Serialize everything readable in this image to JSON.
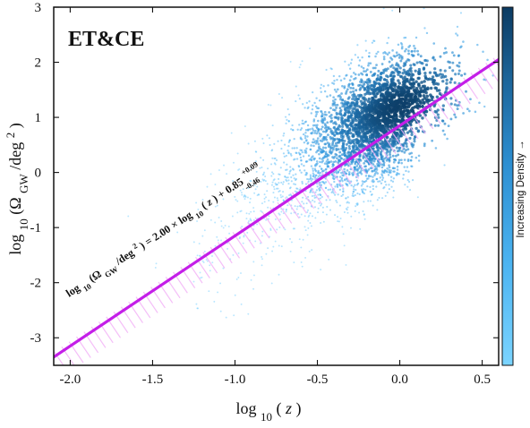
{
  "chart_data": {
    "type": "scatter",
    "title": "ET&CE",
    "x_axis": {
      "label": {
        "base": "log",
        "base_sub": "10",
        "open": "(",
        "var": "z",
        "close": ")"
      },
      "range": [
        -2.1,
        0.6
      ],
      "ticks": [
        -2.0,
        -1.5,
        -1.0,
        -0.5,
        0.0,
        0.5
      ],
      "tick_labels": [
        "-2.0",
        "-1.5",
        "-1.0",
        "-0.5",
        "0.0",
        "0.5"
      ]
    },
    "y_axis": {
      "label": {
        "base": "log",
        "base_sub": "10",
        "open": "(Ω",
        "omega_sub": "GW",
        "slash": "/deg",
        "sup": "2",
        "close": ")"
      },
      "range": [
        -3.5,
        3.0
      ],
      "ticks": [
        -3,
        -2,
        -1,
        0,
        1,
        2,
        3
      ],
      "tick_labels": [
        "-3",
        "-2",
        "-1",
        "0",
        "1",
        "2",
        "3"
      ]
    },
    "fit": {
      "slope": 2.0,
      "intercept": 0.85,
      "upper_error": 0.09,
      "lower_error": 0.46,
      "x_range": [
        -2.1,
        0.6
      ],
      "color": "#c41ee8",
      "band_color": "#f0a4f8",
      "equation": {
        "p1": "log",
        "p1_sub": "10",
        "p2": "(Ω",
        "p2_sub": "GW",
        "p3": "/deg",
        "p3_sup": "2",
        "p4": ") = 2.00 × log",
        "p4_sub": "10",
        "p5": "(",
        "p5_var": "z",
        "p6": ") + 0.85",
        "err_up": "+0.09",
        "err_down": "-0.46"
      }
    },
    "density": {
      "type": "point-cloud",
      "seed": 1337,
      "approx_points": 3200,
      "center_x": 0.0,
      "center_y": 1.0,
      "colormap": [
        "#66c9ff",
        "#48aef1",
        "#2c8ed3",
        "#1d6ca7",
        "#0d3f69"
      ],
      "colorbar_label": "Increasing Density →"
    },
    "grid": false,
    "legend": "none"
  }
}
